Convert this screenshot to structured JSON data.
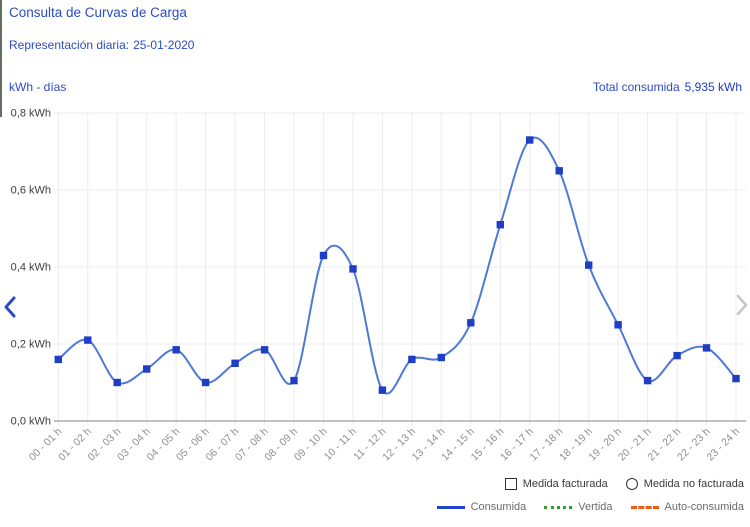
{
  "header": {
    "title": "Consulta de Curvas de Carga",
    "subtitle_label": "Representación diaria:",
    "subtitle_date": "25-01-2020",
    "unit_label": "kWh - días",
    "total_label": "Total consumida",
    "total_value": "5,935 kWh"
  },
  "nav": {
    "prev_color": "#2b4cc4",
    "next_color": "#c6c6c6"
  },
  "legend": {
    "measure_items": [
      {
        "shape": "square",
        "label": "Medida facturada"
      },
      {
        "shape": "circle",
        "label": "Medida no facturada"
      }
    ],
    "series_items": [
      {
        "style": "solid",
        "color": "#2244cc",
        "label": "Consumida"
      },
      {
        "style": "dotted",
        "color": "#2f9e2f",
        "label": "Vertida"
      },
      {
        "style": "dashed",
        "color": "#f05a14",
        "label": "Auto-consumida"
      }
    ]
  },
  "chart_data": {
    "type": "line",
    "title": "",
    "xlabel": "días",
    "ylabel": "kWh",
    "categories": [
      "00 - 01 h",
      "01 - 02 h",
      "02 - 03 h",
      "03 - 04 h",
      "04 - 05 h",
      "05 - 06 h",
      "06 - 07 h",
      "07 - 08 h",
      "08 - 09 h",
      "09 - 10 h",
      "10 - 11 h",
      "11 - 12 h",
      "12 - 13 h",
      "13 - 14 h",
      "14 - 15 h",
      "15 - 16 h",
      "16 - 17 h",
      "17 - 18 h",
      "18 - 19 h",
      "19 - 20 h",
      "20 - 21 h",
      "21 - 22 h",
      "22 - 23 h",
      "23 - 24 h"
    ],
    "series": [
      {
        "name": "Consumida",
        "values": [
          0.16,
          0.21,
          0.1,
          0.135,
          0.185,
          0.1,
          0.15,
          0.185,
          0.105,
          0.43,
          0.395,
          0.08,
          0.16,
          0.165,
          0.255,
          0.51,
          0.73,
          0.65,
          0.405,
          0.25,
          0.105,
          0.17,
          0.19,
          0.11
        ]
      }
    ],
    "total": 5.935,
    "ylim": [
      0,
      0.8
    ],
    "yticks": [
      0.0,
      0.2,
      0.4,
      0.6,
      0.8
    ],
    "ytick_labels": [
      "0,0 kWh",
      "0,2 kWh",
      "0,4 kWh",
      "0,6 kWh",
      "0,8 kWh"
    ],
    "grid": true,
    "legend_position": "bottom-right",
    "line_color": "#4f79d7",
    "marker": "square",
    "marker_color": "#1e3ec6",
    "grid_color": "#ececec",
    "axis_color": "#9c9c9c",
    "xtick_color": "#8f8f8f",
    "ytick_color": "#3d3d3d"
  }
}
